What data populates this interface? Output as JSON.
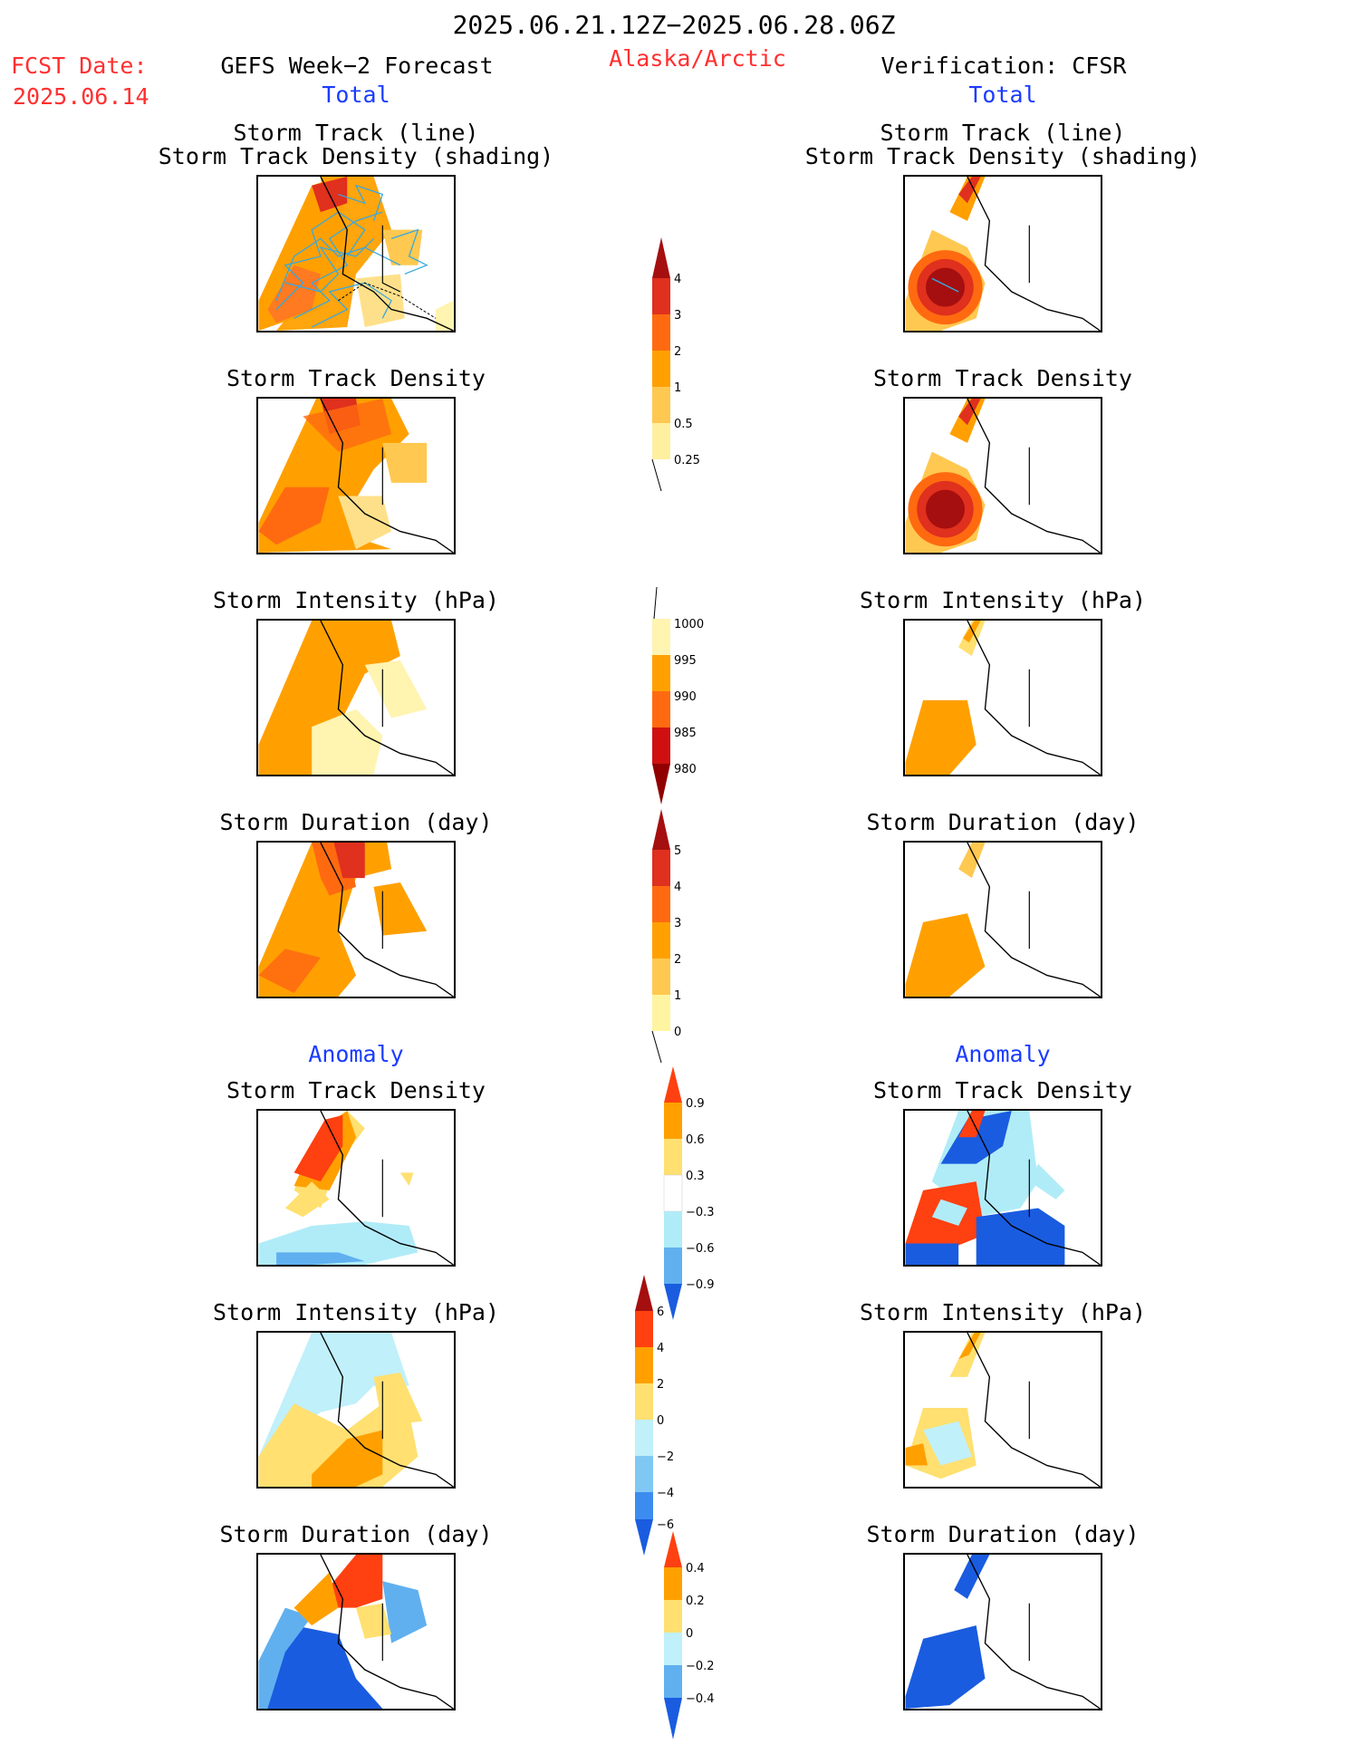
{
  "header": {
    "title": "2025.06.21.12Z−2025.06.28.06Z",
    "region": "Alaska/Arctic",
    "fcst_label": "FCST Date:",
    "fcst_date": "2025.06.14",
    "left_title": "GEFS Week−2 Forecast",
    "right_title": "Verification: CFSR",
    "left_section_total": "Total",
    "right_section_total": "Total",
    "left_section_anomaly": "Anomaly",
    "right_section_anomaly": "Anomaly"
  },
  "panels": {
    "track_line": "Storm Track (line)",
    "track_density_shading": "Storm Track Density (shading)",
    "track_density": "Storm Track Density",
    "intensity": "Storm Intensity (hPa)",
    "duration": "Storm Duration (day)"
  },
  "colorbars": {
    "density": {
      "labels": [
        "4",
        "3",
        "2",
        "1",
        "0.5",
        "0.25"
      ],
      "colors": [
        "#a50f0f",
        "#e0301e",
        "#ff6a10",
        "#ffa000",
        "#ffc850",
        "#fff0a0"
      ]
    },
    "intensity": {
      "labels": [
        "1000",
        "995",
        "990",
        "985",
        "980"
      ],
      "colors": [
        "#fff4b0",
        "#ffa000",
        "#ff6a10",
        "#d01010",
        "#900000"
      ]
    },
    "duration": {
      "labels": [
        "5",
        "4",
        "3",
        "2",
        "1",
        "0"
      ],
      "colors": [
        "#a50f0f",
        "#e0301e",
        "#ff6a10",
        "#ffa000",
        "#ffc850",
        "#fff4a0"
      ]
    },
    "anom_density": {
      "labels": [
        "0.9",
        "0.6",
        "0.3",
        "−0.3",
        "−0.6",
        "−0.9"
      ],
      "colors": [
        "#ff4010",
        "#ffa000",
        "#ffe070",
        "#ffffff",
        "#b0ecf8",
        "#60b0f0",
        "#1a5ce0"
      ]
    },
    "anom_intensity": {
      "labels": [
        "6",
        "4",
        "2",
        "0",
        "−2",
        "−4",
        "−6"
      ],
      "colors": [
        "#a50f0f",
        "#ff4010",
        "#ffa000",
        "#ffe070",
        "#c0f0fa",
        "#80c8f4",
        "#3c8cf0",
        "#1a5ce0"
      ]
    },
    "anom_duration": {
      "labels": [
        "0.4",
        "0.2",
        "0",
        "−0.2",
        "−0.4"
      ],
      "colors": [
        "#ff4010",
        "#ffa000",
        "#ffe070",
        "#c0f0fa",
        "#60b0f0",
        "#1a5ce0"
      ]
    }
  }
}
